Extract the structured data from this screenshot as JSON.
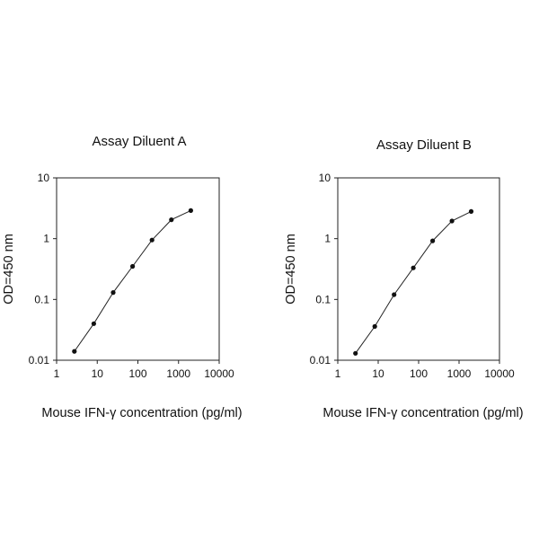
{
  "chart_data": [
    {
      "type": "line",
      "title": "Assay Diluent A",
      "xlabel": "Mouse IFN-γ concentration (pg/ml)",
      "ylabel": "OD=450 nm",
      "xscale": "log",
      "yscale": "log",
      "xlim": [
        1,
        10000
      ],
      "ylim": [
        0.01,
        10
      ],
      "xticks": [
        "1",
        "10",
        "100",
        "1000",
        "10000"
      ],
      "yticks": [
        "0.01",
        "0.1",
        "1",
        "10"
      ],
      "grid": false,
      "series": [
        {
          "x": [
            2.74,
            8.23,
            24.7,
            74.1,
            222,
            667,
            2000
          ],
          "y": [
            0.014,
            0.04,
            0.13,
            0.35,
            0.95,
            2.05,
            2.9
          ]
        }
      ]
    },
    {
      "type": "line",
      "title": "Assay Diluent B",
      "xlabel": "Mouse IFN-γ concentration (pg/ml)",
      "ylabel": "OD=450 nm",
      "xscale": "log",
      "yscale": "log",
      "xlim": [
        1,
        10000
      ],
      "ylim": [
        0.01,
        10
      ],
      "xticks": [
        "1",
        "10",
        "100",
        "1000",
        "10000"
      ],
      "yticks": [
        "0.01",
        "0.1",
        "1",
        "10"
      ],
      "grid": false,
      "series": [
        {
          "x": [
            2.74,
            8.23,
            24.7,
            74.1,
            222,
            667,
            2000
          ],
          "y": [
            0.013,
            0.036,
            0.12,
            0.33,
            0.92,
            1.95,
            2.8
          ]
        }
      ]
    }
  ]
}
